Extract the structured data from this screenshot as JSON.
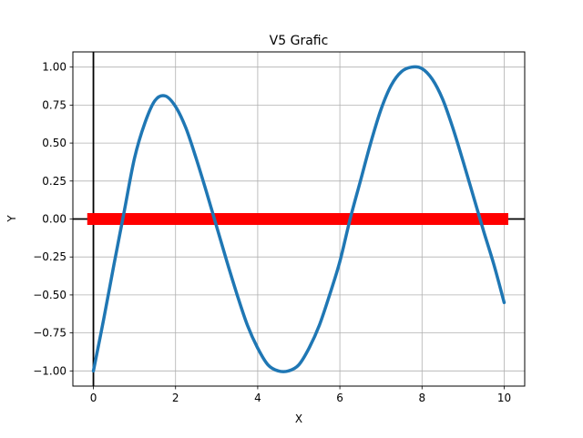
{
  "chart_data": {
    "type": "line",
    "title": "V5 Grafic",
    "xlabel": "X",
    "ylabel": "Y",
    "xlim": [
      -0.5,
      10.5
    ],
    "ylim": [
      -1.1,
      1.1
    ],
    "xticks": [
      0,
      2,
      4,
      6,
      8,
      10
    ],
    "xtick_labels": [
      "0",
      "2",
      "4",
      "6",
      "8",
      "10"
    ],
    "yticks": [
      -1.0,
      -0.75,
      -0.5,
      -0.25,
      0.0,
      0.25,
      0.5,
      0.75,
      1.0
    ],
    "ytick_labels": [
      "−1.00",
      "−0.75",
      "−0.50",
      "−0.25",
      "0.00",
      "0.25",
      "0.50",
      "0.75",
      "1.00"
    ],
    "grid": true,
    "series": [
      {
        "color": "#1f77b4",
        "x": [
          0.0,
          0.25,
          0.5,
          0.75,
          1.0,
          1.25,
          1.5,
          1.75,
          2.0,
          2.25,
          2.5,
          2.75,
          3.0,
          3.25,
          3.5,
          3.75,
          4.0,
          4.25,
          4.5,
          4.75,
          5.0,
          5.25,
          5.5,
          5.75,
          6.0,
          6.25,
          6.5,
          6.75,
          7.0,
          7.25,
          7.5,
          7.75,
          8.0,
          8.25,
          8.5,
          8.75,
          9.0,
          9.25,
          9.5,
          9.75,
          10.0
        ],
        "y": [
          -1.0,
          -0.66,
          -0.3,
          0.05,
          0.4,
          0.63,
          0.78,
          0.81,
          0.74,
          0.6,
          0.4,
          0.18,
          -0.05,
          -0.28,
          -0.5,
          -0.7,
          -0.85,
          -0.96,
          -1.0,
          -1.0,
          -0.96,
          -0.85,
          -0.7,
          -0.5,
          -0.28,
          0.0,
          0.25,
          0.5,
          0.72,
          0.88,
          0.97,
          1.0,
          0.99,
          0.92,
          0.79,
          0.6,
          0.38,
          0.15,
          -0.08,
          -0.3,
          -0.55
        ]
      }
    ],
    "hline": {
      "y": 0.0,
      "xmin": -0.15,
      "xmax": 10.1,
      "color": "#ff0000"
    },
    "axes_lines": {
      "x": 0.0,
      "y": 0.0,
      "color": "#000000"
    }
  }
}
